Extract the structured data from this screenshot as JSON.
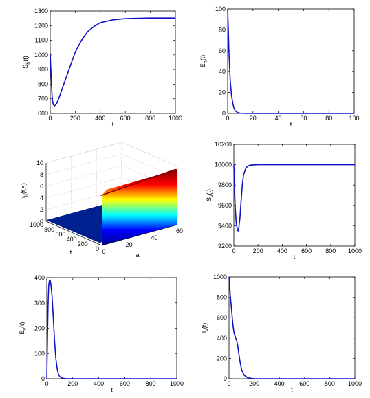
{
  "chart_data": [
    {
      "type": "line",
      "ylabel": "S_h(t)",
      "xlabel": "t",
      "xlim": [
        0,
        1000
      ],
      "ylim": [
        600,
        1300
      ],
      "xticks": [
        0,
        200,
        400,
        600,
        800,
        1000
      ],
      "yticks": [
        600,
        700,
        800,
        900,
        1000,
        1100,
        1200,
        1300
      ],
      "series": [
        {
          "color": "#1010c8",
          "points": [
            [
              0,
              1010
            ],
            [
              5,
              900
            ],
            [
              10,
              800
            ],
            [
              15,
              720
            ],
            [
              20,
              680
            ],
            [
              25,
              660
            ],
            [
              30,
              655
            ],
            [
              35,
              652
            ],
            [
              40,
              656
            ],
            [
              50,
              665
            ],
            [
              60,
              685
            ],
            [
              80,
              730
            ],
            [
              100,
              780
            ],
            [
              150,
              900
            ],
            [
              200,
              1020
            ],
            [
              250,
              1100
            ],
            [
              300,
              1160
            ],
            [
              350,
              1195
            ],
            [
              400,
              1220
            ],
            [
              500,
              1240
            ],
            [
              600,
              1248
            ],
            [
              700,
              1250
            ],
            [
              800,
              1252
            ],
            [
              1000,
              1252
            ]
          ]
        }
      ]
    },
    {
      "type": "line",
      "ylabel": "E_h(t)",
      "xlabel": "t",
      "xlim": [
        0,
        100
      ],
      "ylim": [
        0,
        100
      ],
      "xticks": [
        0,
        20,
        40,
        60,
        80,
        100
      ],
      "yticks": [
        0,
        20,
        40,
        60,
        80,
        100
      ],
      "series": [
        {
          "color": "#1010c8",
          "points": [
            [
              0,
              100
            ],
            [
              0.5,
              82
            ],
            [
              1,
              60
            ],
            [
              1.5,
              45
            ],
            [
              2,
              32
            ],
            [
              3,
              18
            ],
            [
              4,
              10
            ],
            [
              5,
              5
            ],
            [
              6,
              2.5
            ],
            [
              8,
              0.8
            ],
            [
              10,
              0.2
            ],
            [
              15,
              0
            ],
            [
              100,
              0
            ]
          ]
        }
      ]
    },
    {
      "type": "surface",
      "zlabel": "i_h(t,a)",
      "xlabel": "a",
      "ylabel": "t",
      "xlim": [
        0,
        60
      ],
      "ylim": [
        0,
        1000
      ],
      "zlim": [
        0,
        10
      ],
      "xticks": [
        0,
        20,
        40,
        60
      ],
      "yticks": [
        0,
        200,
        400,
        600,
        800,
        1000
      ],
      "zticks": [
        0,
        2,
        4,
        6,
        8,
        10
      ],
      "colormap": [
        "#00008f",
        "#0000ff",
        "#00ffff",
        "#ffff00",
        "#ff0000",
        "#800000"
      ]
    },
    {
      "type": "line",
      "ylabel": "S_v(t)",
      "xlabel": "t",
      "xlim": [
        0,
        1000
      ],
      "ylim": [
        9200,
        10200
      ],
      "xticks": [
        0,
        200,
        400,
        600,
        800,
        1000
      ],
      "yticks": [
        9200,
        9400,
        9600,
        9800,
        10000,
        10200
      ],
      "series": [
        {
          "color": "#1010c8",
          "points": [
            [
              0,
              10000
            ],
            [
              5,
              9800
            ],
            [
              10,
              9600
            ],
            [
              20,
              9420
            ],
            [
              30,
              9360
            ],
            [
              35,
              9350
            ],
            [
              40,
              9370
            ],
            [
              50,
              9470
            ],
            [
              60,
              9650
            ],
            [
              70,
              9800
            ],
            [
              80,
              9900
            ],
            [
              100,
              9970
            ],
            [
              130,
              9995
            ],
            [
              200,
              10000
            ],
            [
              1000,
              10000
            ]
          ]
        }
      ]
    },
    {
      "type": "line",
      "ylabel": "E_v(t)",
      "xlabel": "t",
      "xlim": [
        0,
        1000
      ],
      "ylim": [
        0,
        400
      ],
      "xticks": [
        0,
        200,
        400,
        600,
        800,
        1000
      ],
      "yticks": [
        0,
        100,
        200,
        300,
        400
      ],
      "series": [
        {
          "color": "#1010c8",
          "points": [
            [
              0,
              0
            ],
            [
              5,
              150
            ],
            [
              10,
              300
            ],
            [
              15,
              370
            ],
            [
              20,
              388
            ],
            [
              25,
              390
            ],
            [
              30,
              380
            ],
            [
              40,
              330
            ],
            [
              50,
              240
            ],
            [
              60,
              150
            ],
            [
              70,
              80
            ],
            [
              80,
              40
            ],
            [
              90,
              18
            ],
            [
              100,
              8
            ],
            [
              120,
              2
            ],
            [
              150,
              0
            ],
            [
              1000,
              0
            ]
          ]
        }
      ]
    },
    {
      "type": "line",
      "ylabel": "I_v(t)",
      "xlabel": "t",
      "xlim": [
        0,
        1000
      ],
      "ylim": [
        0,
        1000
      ],
      "xticks": [
        0,
        200,
        400,
        600,
        800,
        1000
      ],
      "yticks": [
        0,
        200,
        400,
        600,
        800,
        1000
      ],
      "series": [
        {
          "color": "#1010c8",
          "points": [
            [
              0,
              1000
            ],
            [
              5,
              920
            ],
            [
              10,
              820
            ],
            [
              20,
              680
            ],
            [
              30,
              540
            ],
            [
              40,
              450
            ],
            [
              50,
              410
            ],
            [
              60,
              380
            ],
            [
              70,
              320
            ],
            [
              80,
              230
            ],
            [
              90,
              150
            ],
            [
              100,
              90
            ],
            [
              120,
              35
            ],
            [
              150,
              8
            ],
            [
              200,
              0
            ],
            [
              1000,
              0
            ]
          ]
        }
      ]
    }
  ]
}
